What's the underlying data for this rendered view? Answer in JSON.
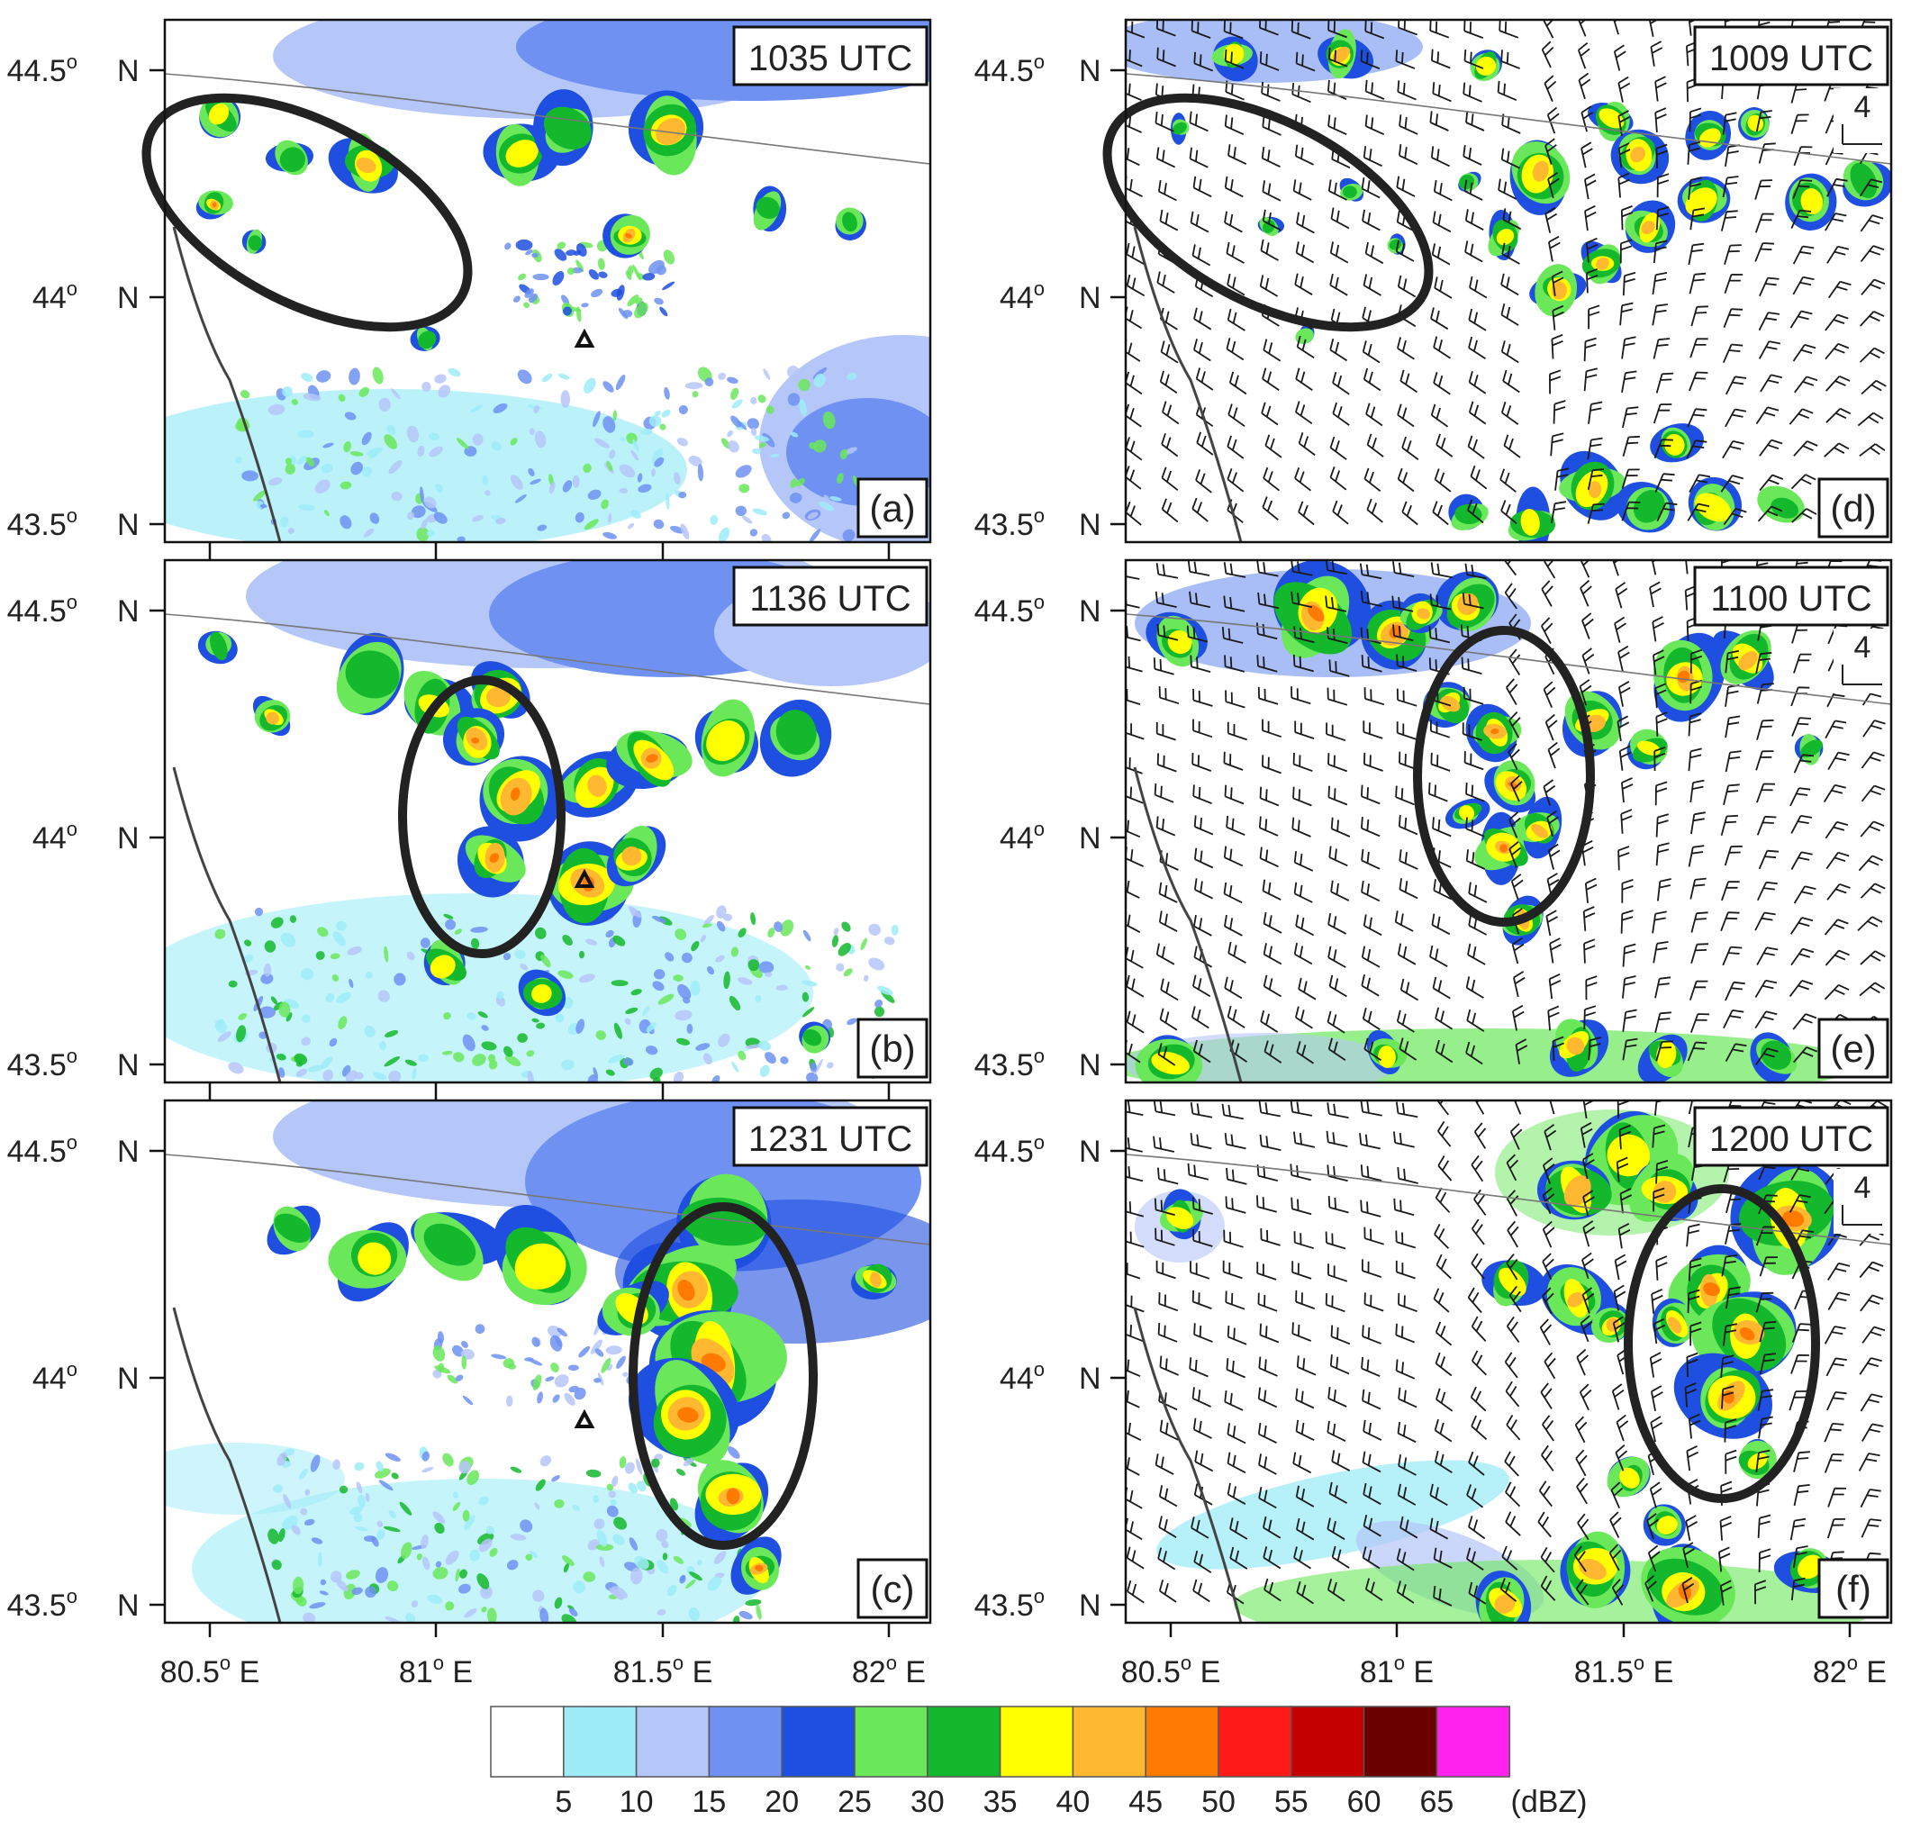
{
  "chart_data": {
    "type": "heatmap",
    "units": "(dBZ)",
    "lat_ticks": [
      "44.5",
      "44",
      "43.5"
    ],
    "lat_unit": "N",
    "lon_ticks": [
      "80.5",
      "81",
      "81.5",
      "82"
    ],
    "lon_unit": "E",
    "degree_symbol": "o",
    "colorbar": {
      "levels": [
        5,
        10,
        15,
        20,
        25,
        30,
        35,
        40,
        45,
        50,
        55,
        60,
        65
      ],
      "colors": [
        "#ffffff",
        "#9eecf8",
        "#b5c6f8",
        "#6f92f2",
        "#1f4fe0",
        "#6ae85a",
        "#13b82c",
        "#ffff00",
        "#ffb830",
        "#ff7a00",
        "#ff1a1a",
        "#c40000",
        "#6a0000",
        "#ff22ee"
      ]
    },
    "panels": [
      {
        "letter": "(a)",
        "time": "1035 UTC",
        "barb_scale": null
      },
      {
        "letter": "(b)",
        "time": "1136 UTC",
        "barb_scale": null
      },
      {
        "letter": "(c)",
        "time": "1231 UTC",
        "barb_scale": null
      },
      {
        "letter": "(d)",
        "time": "1009 UTC",
        "barb_scale": "4"
      },
      {
        "letter": "(e)",
        "time": "1100 UTC",
        "barb_scale": "4"
      },
      {
        "letter": "(f)",
        "time": "1200 UTC",
        "barb_scale": "4"
      }
    ]
  }
}
